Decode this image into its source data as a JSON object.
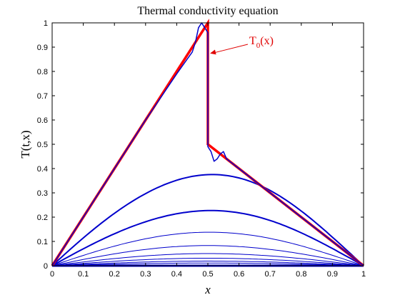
{
  "chart_data": {
    "type": "line",
    "title": "Thermal conductivity equation",
    "xlabel": "x",
    "ylabel": "T(t,x)",
    "xlim": [
      0,
      1
    ],
    "ylim": [
      0,
      1
    ],
    "x_ticks": [
      "0",
      "0.1",
      "0.2",
      "0.3",
      "0.4",
      "0.5",
      "0.6",
      "0.7",
      "0.8",
      "0.9",
      "1"
    ],
    "y_ticks": [
      "0",
      "0.1",
      "0.2",
      "0.3",
      "0.4",
      "0.5",
      "0.6",
      "0.7",
      "0.8",
      "0.9",
      "1"
    ],
    "grid": false,
    "annotation": {
      "text": "T",
      "subscript": "0",
      "suffix": "(x)",
      "points_to": [
        0.5,
        0.88
      ],
      "color": "#e00000"
    },
    "initial_condition": {
      "color": "#ff0000",
      "x": [
        0,
        0.1,
        0.2,
        0.3,
        0.4,
        0.49,
        0.5,
        0.5,
        0.6,
        0.7,
        0.8,
        0.9,
        1.0
      ],
      "y": [
        0,
        0.2,
        0.4,
        0.6,
        0.8,
        0.98,
        1.0,
        0.5,
        0.4,
        0.3,
        0.2,
        0.1,
        0
      ]
    },
    "profile_amplitudes": [
      1.0,
      0.375,
      0.227,
      0.138,
      0.083,
      0.05,
      0.031,
      0.019,
      0.011
    ],
    "series_color": "#0000cc",
    "first_profile": {
      "x": [
        0,
        0.1,
        0.2,
        0.3,
        0.4,
        0.45,
        0.46,
        0.47,
        0.48,
        0.49,
        0.5,
        0.5,
        0.51,
        0.52,
        0.53,
        0.54,
        0.55,
        0.56,
        0.57,
        0.58,
        0.59,
        0.6,
        0.7,
        0.8,
        0.9,
        1.0
      ],
      "y": [
        0,
        0.2,
        0.4,
        0.6,
        0.79,
        0.88,
        0.92,
        0.98,
        1.0,
        0.98,
        0.96,
        0.49,
        0.47,
        0.43,
        0.44,
        0.46,
        0.47,
        0.44,
        0.43,
        0.42,
        0.41,
        0.4,
        0.3,
        0.2,
        0.1,
        0
      ]
    }
  }
}
